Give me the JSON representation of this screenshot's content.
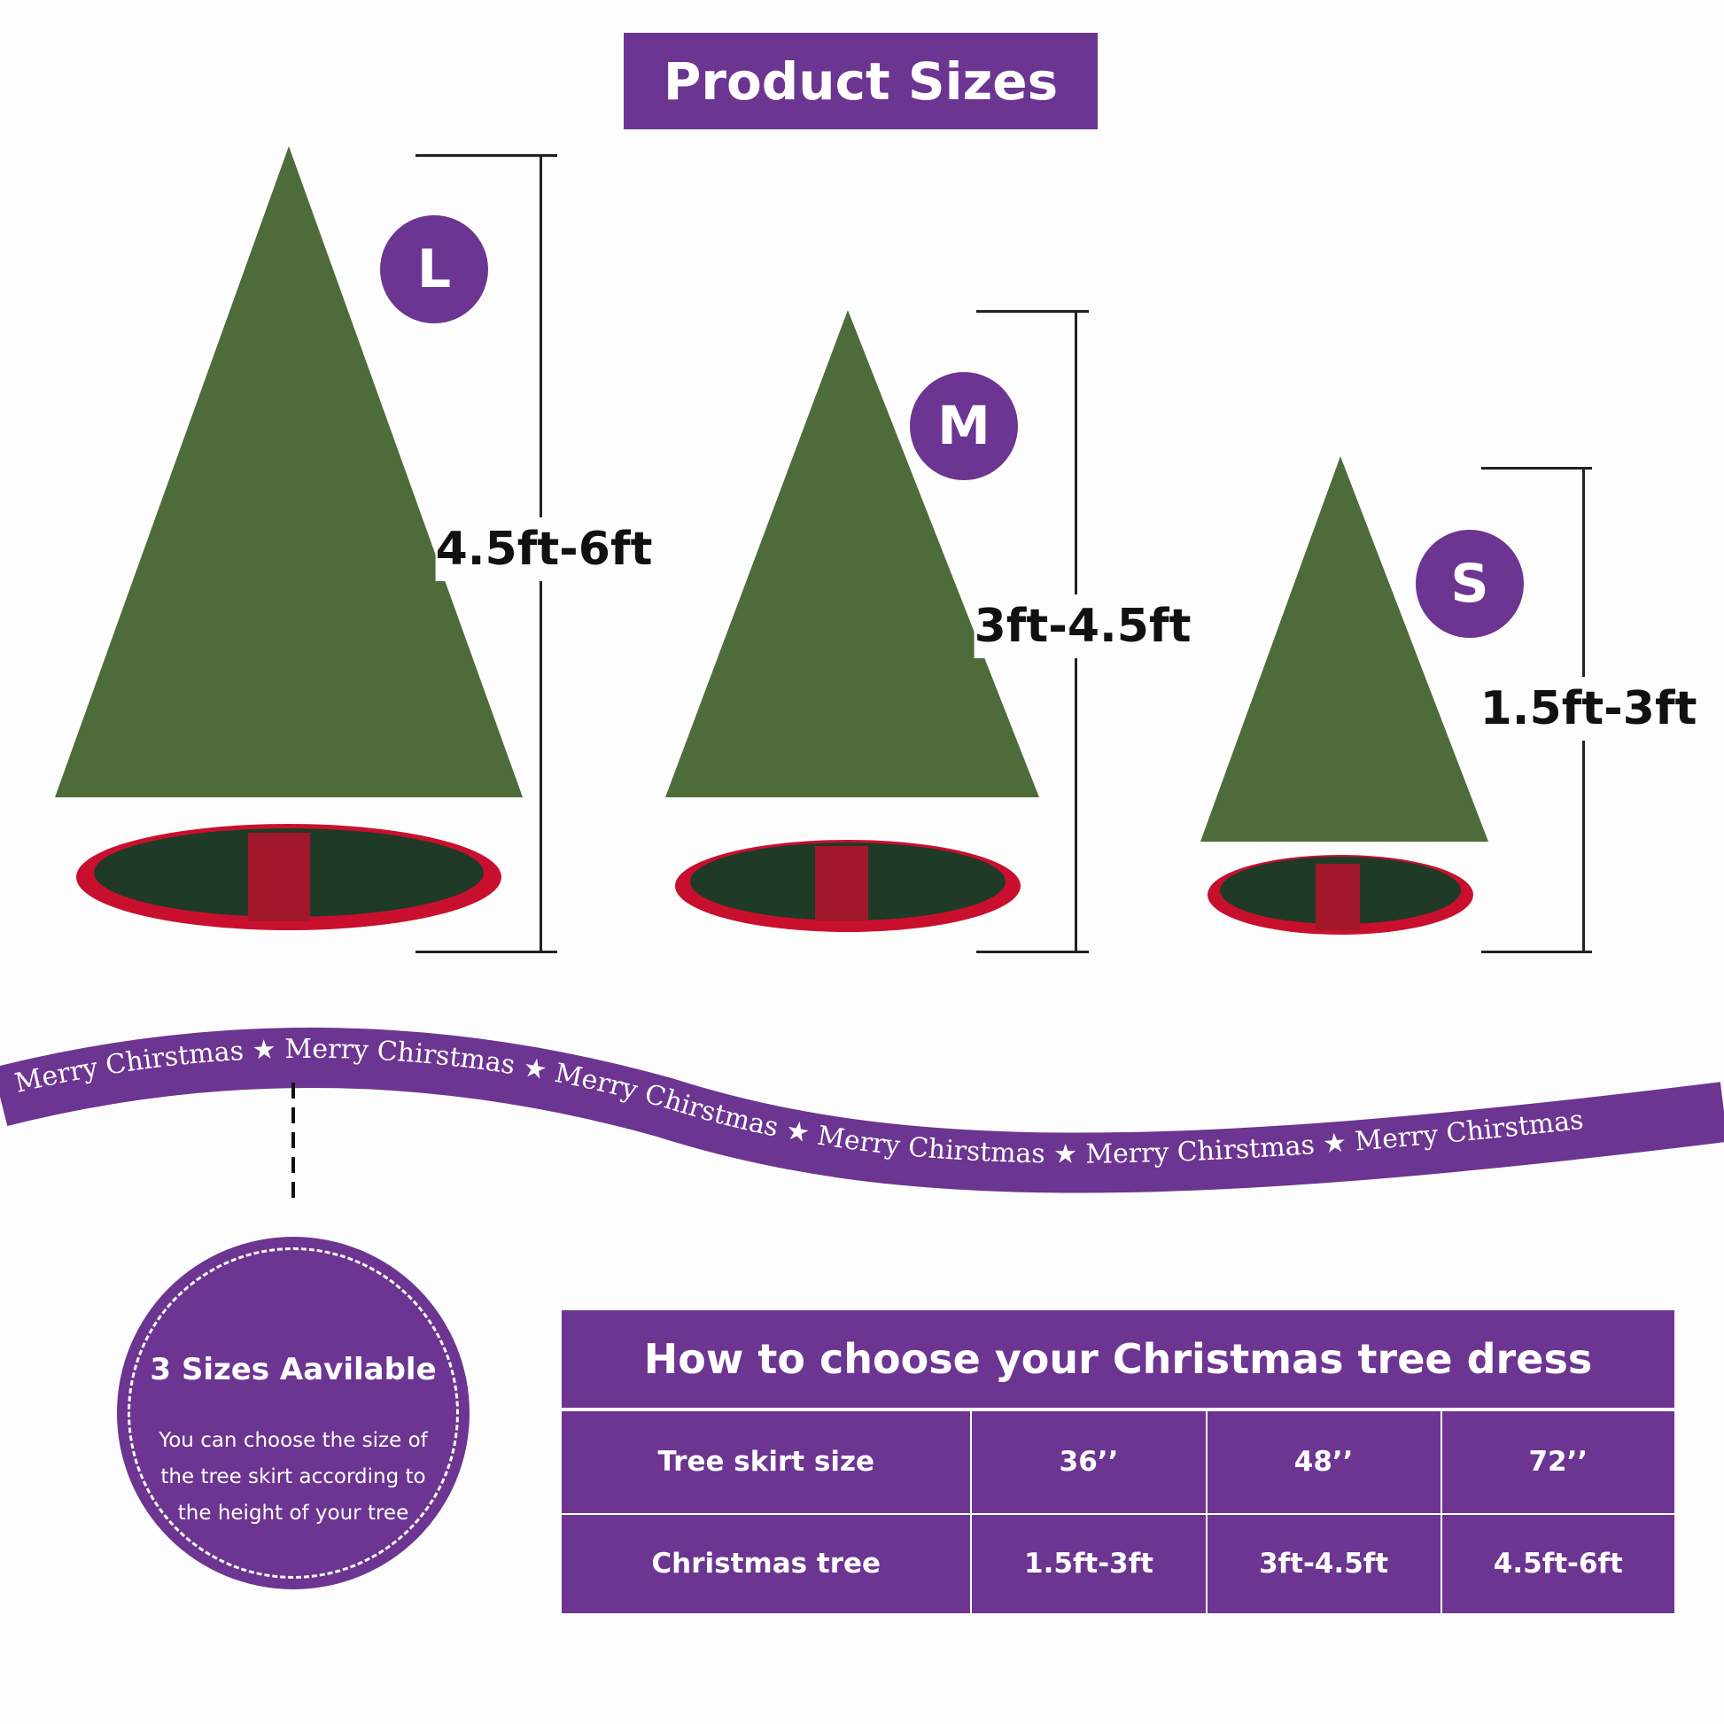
{
  "title": "Product Sizes",
  "sizes": [
    {
      "letter": "L",
      "height": "4.5ft-6ft"
    },
    {
      "letter": "M",
      "height": "3ft-4.5ft"
    },
    {
      "letter": "S",
      "height": "1.5ft-3ft"
    }
  ],
  "ribbon": {
    "text": "Merry Chirstmas",
    "icon": "star-icon"
  },
  "callout": {
    "title": "3 Sizes Aavilable",
    "body": "You can choose the size of the tree skirt according to the height of your tree"
  },
  "table": {
    "title": "How to choose your Christmas tree dress",
    "rows": [
      {
        "label": "Tree skirt size",
        "values": [
          "36’’",
          "48’’",
          "72’’"
        ]
      },
      {
        "label": "Christmas tree",
        "values": [
          "1.5ft-3ft",
          "3ft-4.5ft",
          "4.5ft-6ft"
        ]
      }
    ]
  },
  "colors": {
    "purple": "#6c3591",
    "tree": "#4e6b3a",
    "skirt": "#1f3a26",
    "skirt_trim": "#c8102e"
  }
}
